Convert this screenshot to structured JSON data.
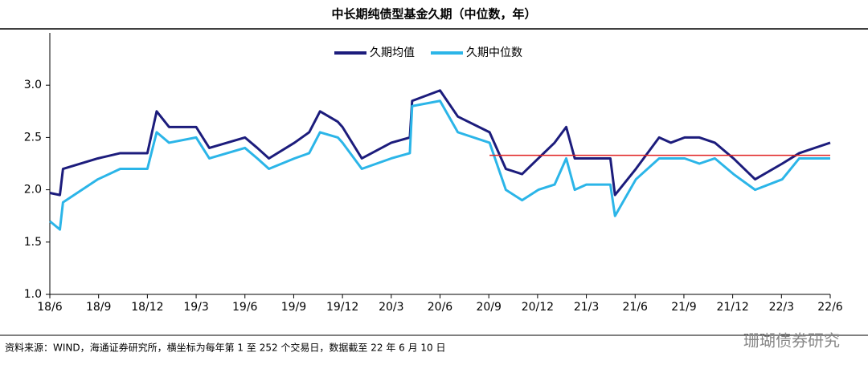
{
  "chart_data": {
    "type": "line",
    "title": "中长期纯债型基金久期（中位数，年）",
    "source": "资料来源：WIND，海通证券研究所，横坐标为每年第 1 至 252 个交易日，数据截至 22 年 6 月 10 日",
    "watermark": "珊瑚债券研究",
    "x": [
      0,
      13,
      17,
      62,
      91,
      126,
      138,
      154,
      189,
      206,
      252,
      268,
      283,
      316,
      335,
      349,
      372,
      378,
      403,
      441,
      465,
      468,
      504,
      527,
      568,
      589,
      610,
      631,
      652,
      667,
      678,
      693,
      724,
      730,
      757,
      787,
      802,
      820,
      839,
      859,
      883,
      911,
      946,
      968,
      1008
    ],
    "series": [
      {
        "name": "久期均值",
        "color": "#1c1c7c",
        "values": [
          1.97,
          1.95,
          2.2,
          2.3,
          2.35,
          2.35,
          2.75,
          2.6,
          2.6,
          2.4,
          2.5,
          2.4,
          2.3,
          2.45,
          2.55,
          2.75,
          2.65,
          2.6,
          2.3,
          2.45,
          2.5,
          2.85,
          2.95,
          2.7,
          2.55,
          2.2,
          2.15,
          2.3,
          2.45,
          2.6,
          2.3,
          2.3,
          2.3,
          1.95,
          2.2,
          2.5,
          2.45,
          2.5,
          2.5,
          2.45,
          2.3,
          2.1,
          2.25,
          2.35,
          2.45
        ]
      },
      {
        "name": "久期中位数",
        "color": "#2bb5e8",
        "values": [
          1.7,
          1.62,
          1.88,
          2.1,
          2.2,
          2.2,
          2.55,
          2.45,
          2.5,
          2.3,
          2.4,
          2.3,
          2.2,
          2.3,
          2.35,
          2.55,
          2.5,
          2.45,
          2.2,
          2.3,
          2.35,
          2.8,
          2.85,
          2.55,
          2.45,
          2.0,
          1.9,
          2.0,
          2.05,
          2.3,
          2.0,
          2.05,
          2.05,
          1.75,
          2.1,
          2.3,
          2.3,
          2.3,
          2.25,
          2.3,
          2.15,
          2.0,
          2.1,
          2.3,
          2.3
        ]
      }
    ],
    "reference_line": {
      "value": 2.33,
      "color": "#e02020",
      "x": [
        568,
        1008
      ]
    },
    "xlim": [
      0,
      1008
    ],
    "xticks": [
      {
        "value": 0,
        "label": "18/6"
      },
      {
        "value": 63,
        "label": "18/9"
      },
      {
        "value": 126,
        "label": "18/12"
      },
      {
        "value": 189,
        "label": "19/3"
      },
      {
        "value": 252,
        "label": "19/6"
      },
      {
        "value": 315,
        "label": "19/9"
      },
      {
        "value": 378,
        "label": "19/12"
      },
      {
        "value": 441,
        "label": "20/3"
      },
      {
        "value": 504,
        "label": "20/6"
      },
      {
        "value": 567,
        "label": "20/9"
      },
      {
        "value": 630,
        "label": "20/12"
      },
      {
        "value": 693,
        "label": "21/3"
      },
      {
        "value": 756,
        "label": "21/6"
      },
      {
        "value": 819,
        "label": "21/9"
      },
      {
        "value": 882,
        "label": "21/12"
      },
      {
        "value": 945,
        "label": "22/3"
      },
      {
        "value": 1008,
        "label": "22/6"
      }
    ],
    "ylim": [
      1.0,
      3.5
    ],
    "yticks": [
      {
        "value": 1,
        "label": "1.0"
      },
      {
        "value": 1.5,
        "label": "1.5"
      },
      {
        "value": 2,
        "label": "2.0"
      },
      {
        "value": 2.5,
        "label": "2.5"
      },
      {
        "value": 3,
        "label": "3.0"
      }
    ],
    "grid": false,
    "legend": "top"
  }
}
